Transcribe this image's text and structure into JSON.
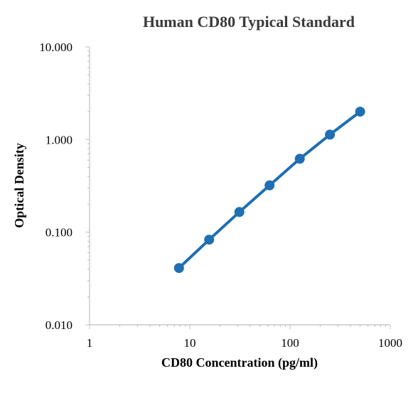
{
  "chart_data": {
    "type": "scatter",
    "title": "Human CD80 Typical Standard",
    "xlabel": "CD80 Concentration (pg/ml)",
    "ylabel": "Optical Density",
    "x_scale": "log",
    "y_scale": "log",
    "xlim": [
      1,
      1000
    ],
    "ylim": [
      0.01,
      10
    ],
    "x_tick_labels": [
      "1",
      "10",
      "100",
      "1000"
    ],
    "y_tick_labels": [
      "0.010",
      "0.100",
      "1.000",
      "10.000"
    ],
    "grid": false,
    "legend": "none",
    "series": [
      {
        "x": [
          7.8,
          15.6,
          31.2,
          62.5,
          125,
          250,
          500
        ],
        "y": [
          0.041,
          0.083,
          0.165,
          0.32,
          0.62,
          1.13,
          2.0
        ],
        "color": "#1f6fb2",
        "line": true
      }
    ]
  }
}
